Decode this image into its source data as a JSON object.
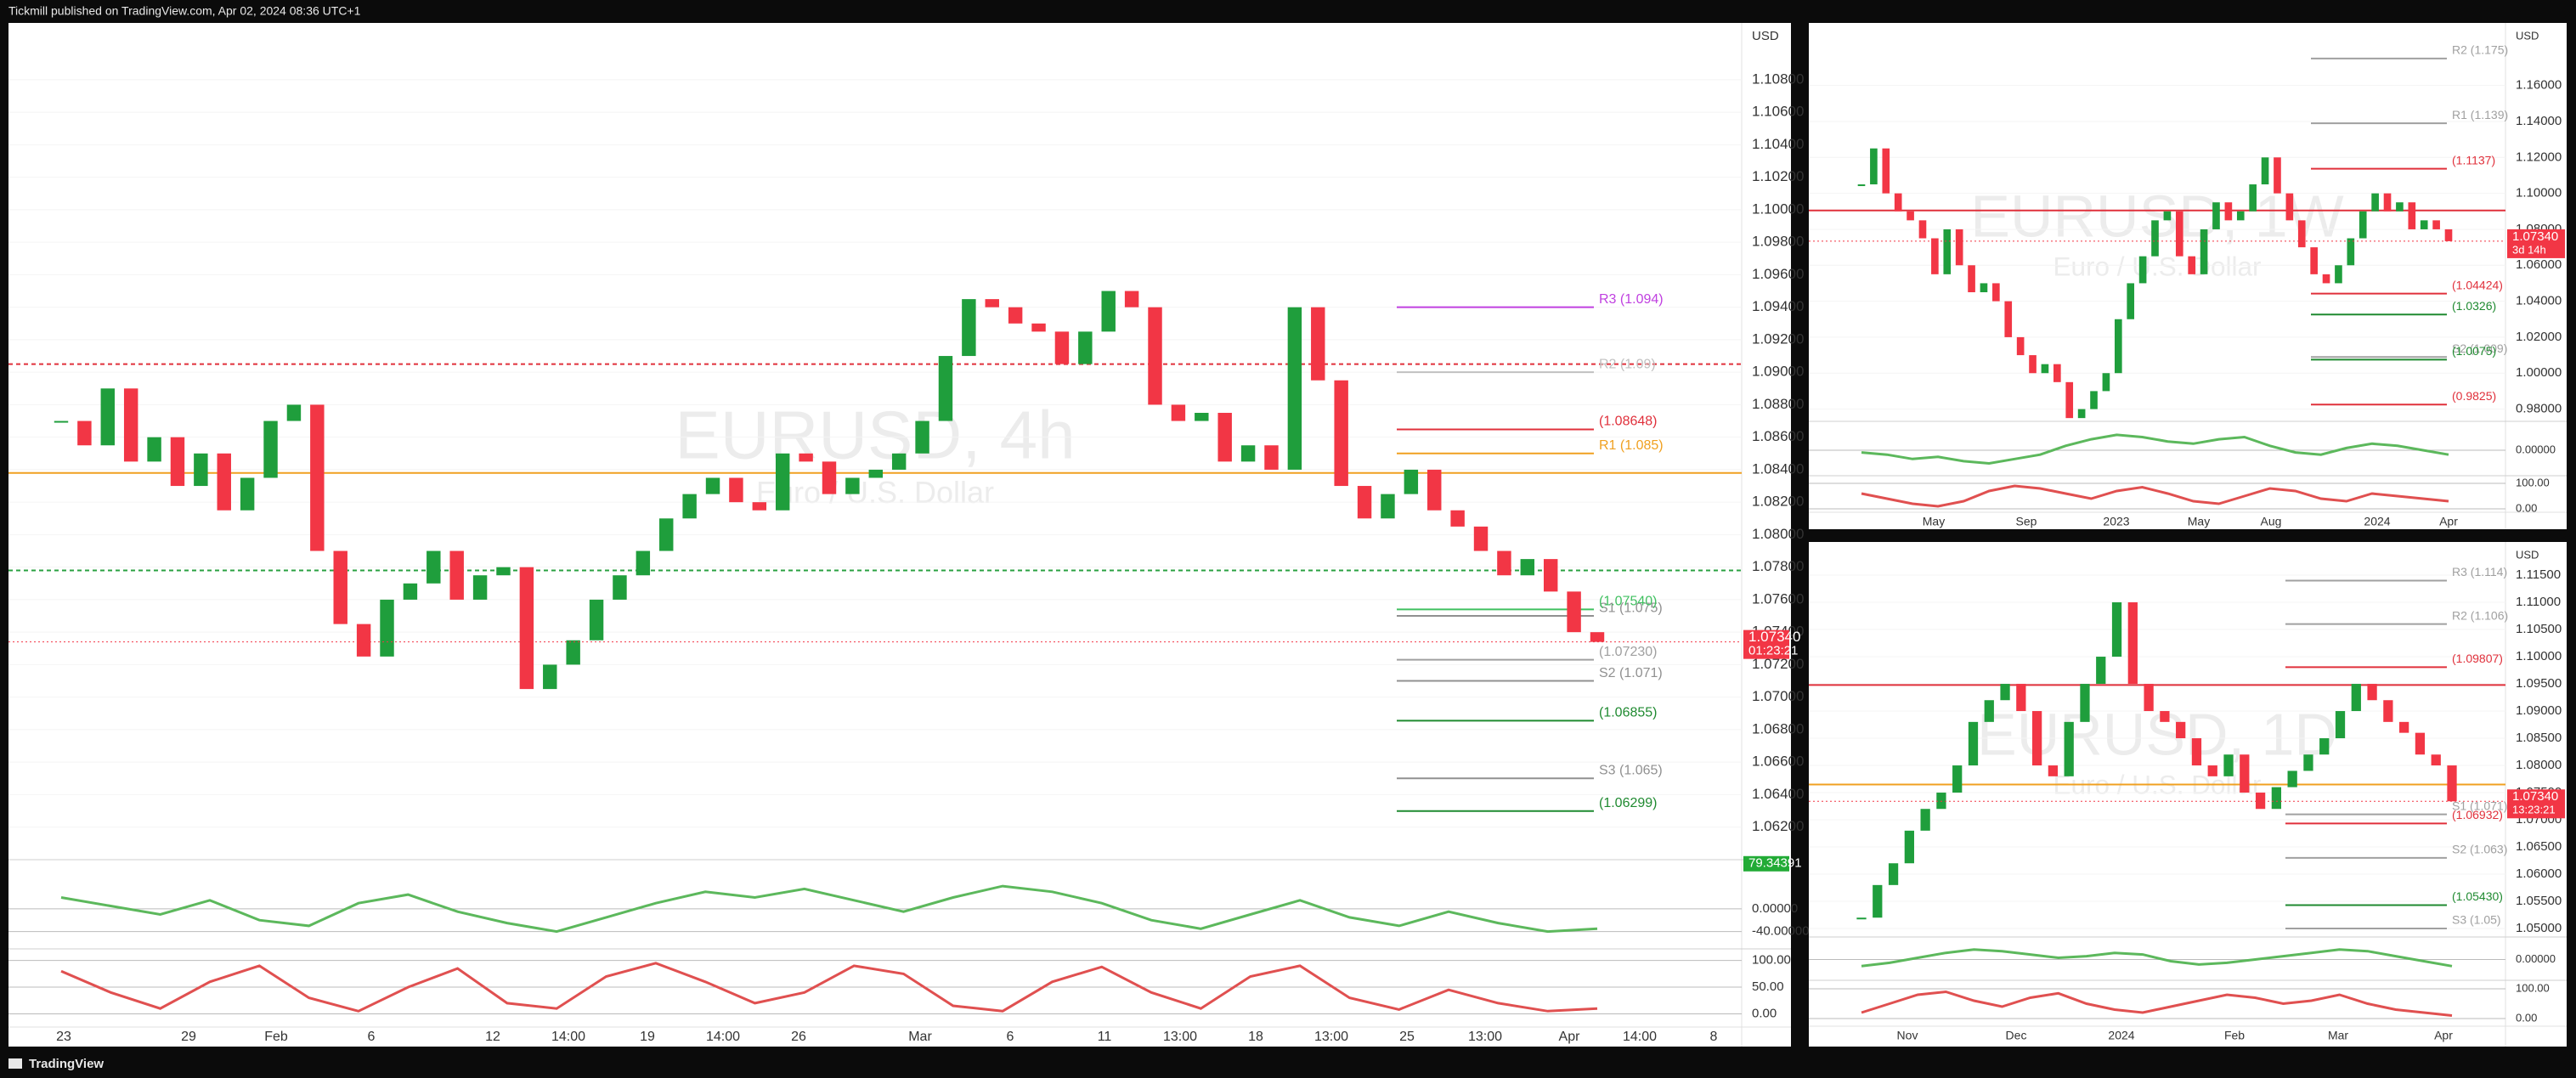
{
  "header": {
    "text": "Tickmill published on TradingView.com, Apr 02, 2024 08:36 UTC+1"
  },
  "footer": {
    "brand": "TradingView"
  },
  "chart_data": [
    {
      "type": "candlestick",
      "symbol": "EURUSD, 4h",
      "description": "Euro / U.S. Dollar",
      "currency": "USD",
      "up_color": "#1f9e3c",
      "down_color": "#f23645",
      "ylim": [
        1.0601,
        1.1115
      ],
      "yticks": [
        {
          "value": 1.108,
          "label": "1.10800"
        },
        {
          "value": 1.106,
          "label": "1.10600"
        },
        {
          "value": 1.104,
          "label": "1.10400"
        },
        {
          "value": 1.102,
          "label": "1.10200"
        },
        {
          "value": 1.1,
          "label": "1.10000"
        },
        {
          "value": 1.098,
          "label": "1.09800"
        },
        {
          "value": 1.096,
          "label": "1.09600"
        },
        {
          "value": 1.094,
          "label": "1.09400"
        },
        {
          "value": 1.092,
          "label": "1.09200"
        },
        {
          "value": 1.09,
          "label": "1.09000"
        },
        {
          "value": 1.088,
          "label": "1.08800"
        },
        {
          "value": 1.086,
          "label": "1.08600"
        },
        {
          "value": 1.084,
          "label": "1.08400"
        },
        {
          "value": 1.082,
          "label": "1.08200"
        },
        {
          "value": 1.08,
          "label": "1.08000"
        },
        {
          "value": 1.078,
          "label": "1.07800"
        },
        {
          "value": 1.076,
          "label": "1.07600"
        },
        {
          "value": 1.074,
          "label": "1.07400"
        },
        {
          "value": 1.072,
          "label": "1.07200"
        },
        {
          "value": 1.07,
          "label": "1.07000"
        },
        {
          "value": 1.068,
          "label": "1.06800"
        },
        {
          "value": 1.066,
          "label": "1.06600"
        },
        {
          "value": 1.064,
          "label": "1.06400"
        },
        {
          "value": 1.062,
          "label": "1.06200"
        }
      ],
      "times": [
        "23",
        "29",
        "Feb",
        "6",
        "12",
        "14:00",
        "19",
        "14:00",
        "26",
        "Mar",
        "6",
        "11",
        "13:00",
        "18",
        "13:00",
        "25",
        "13:00",
        "Apr",
        "14:00",
        "8"
      ],
      "closes": [
        1.087,
        1.0855,
        1.089,
        1.0845,
        1.086,
        1.083,
        1.085,
        1.0815,
        1.0835,
        1.087,
        1.088,
        1.079,
        1.0745,
        1.0725,
        1.076,
        1.077,
        1.079,
        1.076,
        1.0775,
        1.078,
        1.0705,
        1.072,
        1.0735,
        1.076,
        1.0775,
        1.079,
        1.081,
        1.0825,
        1.0835,
        1.082,
        1.0815,
        1.085,
        1.0845,
        1.0825,
        1.0835,
        1.084,
        1.085,
        1.087,
        1.091,
        1.0945,
        1.094,
        1.093,
        1.0925,
        1.0905,
        1.0925,
        1.095,
        1.094,
        1.088,
        1.087,
        1.0875,
        1.0845,
        1.0855,
        1.084,
        1.094,
        1.0895,
        1.083,
        1.081,
        1.0825,
        1.084,
        1.0815,
        1.0805,
        1.079,
        1.0775,
        1.0785,
        1.0765,
        1.074,
        1.0734
      ],
      "lines": [
        {
          "value": 1.0905,
          "color": "#e0303b",
          "dash": true
        },
        {
          "value": 1.0838,
          "color": "#f0a020",
          "dash": false
        },
        {
          "value": 1.0778,
          "color": "#2aa040",
          "dash": true
        }
      ],
      "levels": [
        {
          "label": "R3 (1.094)",
          "value": 1.094,
          "color": "#c040e0"
        },
        {
          "label": "R2 (1.09)",
          "value": 1.09,
          "color": "#c0c0c0"
        },
        {
          "label": "(1.08648)",
          "value": 1.08648,
          "color": "#e0303b"
        },
        {
          "label": "R1 (1.085)",
          "value": 1.085,
          "color": "#f0a020"
        },
        {
          "label": "S1 (1.075)",
          "value": 1.075,
          "color": "#909090"
        },
        {
          "label": "(1.07540)",
          "value": 1.0754,
          "color": "#40c060"
        },
        {
          "label": "(1.07230)",
          "value": 1.0723,
          "color": "#a0a0a0"
        },
        {
          "label": "S2 (1.071)",
          "value": 1.071,
          "color": "#909090"
        },
        {
          "label": "(1.06855)",
          "value": 1.06855,
          "color": "#1f8a30"
        },
        {
          "label": "S3 (1.065)",
          "value": 1.065,
          "color": "#909090"
        },
        {
          "label": "(1.06299)",
          "value": 1.06299,
          "color": "#1f8a30"
        }
      ],
      "last": {
        "value": 1.0734,
        "label": "1.07340",
        "countdown": "01:23:21"
      },
      "oscillators": [
        {
          "ylim": [
            -60,
            82
          ],
          "ticks": [
            {
              "value": 0,
              "label": "0.00000"
            },
            {
              "value": -40,
              "label": "-40.00000"
            }
          ],
          "badge": {
            "value": 79.34391,
            "label": "79.34391"
          },
          "values": [
            20,
            5,
            -10,
            15,
            -20,
            -30,
            10,
            25,
            -5,
            -25,
            -40,
            -15,
            10,
            30,
            20,
            35,
            15,
            -5,
            20,
            40,
            30,
            10,
            -20,
            -35,
            -10,
            15,
            -15,
            -30,
            -5,
            -25,
            -40,
            -35
          ]
        },
        {
          "ylim": [
            -20,
            117
          ],
          "ticks": [
            {
              "value": 100,
              "label": "100.00"
            },
            {
              "value": 50,
              "label": "50.00"
            },
            {
              "value": 0,
              "label": "0.00"
            }
          ],
          "values": [
            80,
            40,
            10,
            60,
            90,
            30,
            5,
            50,
            85,
            20,
            10,
            70,
            95,
            60,
            20,
            40,
            90,
            75,
            15,
            5,
            60,
            88,
            40,
            10,
            70,
            90,
            30,
            8,
            45,
            20,
            5,
            10
          ]
        }
      ]
    },
    {
      "type": "candlestick",
      "symbol": "EURUSD, 1W",
      "description": "Euro / U.S. Dollar",
      "currency": "USD",
      "up_color": "#1f9e3c",
      "down_color": "#f23645",
      "ylim": [
        0.9746,
        1.1948
      ],
      "yticks": [
        {
          "value": 1.16,
          "label": "1.16000"
        },
        {
          "value": 1.14,
          "label": "1.14000"
        },
        {
          "value": 1.12,
          "label": "1.12000"
        },
        {
          "value": 1.1,
          "label": "1.10000"
        },
        {
          "value": 1.08,
          "label": "1.08000"
        },
        {
          "value": 1.06,
          "label": "1.06000"
        },
        {
          "value": 1.04,
          "label": "1.04000"
        },
        {
          "value": 1.02,
          "label": "1.02000"
        },
        {
          "value": 1,
          "label": "1.00000"
        },
        {
          "value": 0.98,
          "label": "0.98000"
        }
      ],
      "times": [
        "May",
        "Sep",
        "2023",
        "May",
        "Aug",
        "2024",
        "Apr"
      ],
      "closes": [
        1.105,
        1.125,
        1.1,
        1.09,
        1.085,
        1.075,
        1.055,
        1.08,
        1.06,
        1.045,
        1.05,
        1.04,
        1.02,
        1.01,
        1.0,
        1.005,
        0.995,
        0.975,
        0.98,
        0.99,
        1.0,
        1.03,
        1.05,
        1.065,
        1.085,
        1.09,
        1.065,
        1.055,
        1.08,
        1.095,
        1.085,
        1.09,
        1.105,
        1.12,
        1.1,
        1.085,
        1.07,
        1.055,
        1.05,
        1.06,
        1.075,
        1.09,
        1.1,
        1.09,
        1.095,
        1.08,
        1.085,
        1.08,
        1.0734
      ],
      "lines": [
        {
          "value": 1.0905,
          "color": "#e0303b",
          "dash": false
        }
      ],
      "levels": [
        {
          "label": "R2 (1.175)",
          "value": 1.175,
          "color": "#a0a0a0"
        },
        {
          "label": "R1 (1.139)",
          "value": 1.139,
          "color": "#a0a0a0"
        },
        {
          "label": "(1.1137)",
          "value": 1.1137,
          "color": "#e0303b"
        },
        {
          "label": "(1.04424)",
          "value": 1.04424,
          "color": "#e0303b"
        },
        {
          "label": "(1.0326)",
          "value": 1.0326,
          "color": "#1f8a30"
        },
        {
          "label": "S2 (1.009)",
          "value": 1.009,
          "color": "#a0a0a0"
        },
        {
          "label": "(1.0075)",
          "value": 1.0075,
          "color": "#1f8a30"
        },
        {
          "label": "(0.9825)",
          "value": 0.9825,
          "color": "#e0303b"
        }
      ],
      "last": {
        "value": 1.0734,
        "label": "1.07340",
        "countdown": "3d 14h"
      },
      "oscillators": [
        {
          "ylim": [
            -60,
            60
          ],
          "ticks": [
            {
              "value": 0,
              "label": "0.00000"
            }
          ],
          "values": [
            -5,
            -10,
            -20,
            -15,
            -25,
            -30,
            -20,
            -10,
            10,
            25,
            35,
            30,
            20,
            15,
            25,
            30,
            10,
            -5,
            -10,
            5,
            15,
            10,
            0,
            -10
          ]
        },
        {
          "ylim": [
            -20,
            120
          ],
          "ticks": [
            {
              "value": 100,
              "label": "100.00"
            },
            {
              "value": 0,
              "label": "0.00"
            }
          ],
          "values": [
            60,
            40,
            20,
            10,
            30,
            70,
            90,
            80,
            60,
            40,
            70,
            85,
            60,
            30,
            20,
            50,
            80,
            70,
            40,
            30,
            60,
            50,
            40,
            30
          ]
        }
      ]
    },
    {
      "type": "candlestick",
      "symbol": "EURUSD, 1D",
      "description": "Euro / U.S. Dollar",
      "currency": "USD",
      "up_color": "#1f9e3c",
      "down_color": "#f23645",
      "ylim": [
        1.0486,
        1.1211
      ],
      "yticks": [
        {
          "value": 1.115,
          "label": "1.11500"
        },
        {
          "value": 1.11,
          "label": "1.11000"
        },
        {
          "value": 1.105,
          "label": "1.10500"
        },
        {
          "value": 1.1,
          "label": "1.10000"
        },
        {
          "value": 1.095,
          "label": "1.09500"
        },
        {
          "value": 1.09,
          "label": "1.09000"
        },
        {
          "value": 1.085,
          "label": "1.08500"
        },
        {
          "value": 1.08,
          "label": "1.08000"
        },
        {
          "value": 1.075,
          "label": "1.07500"
        },
        {
          "value": 1.07,
          "label": "1.07000"
        },
        {
          "value": 1.065,
          "label": "1.06500"
        },
        {
          "value": 1.06,
          "label": "1.06000"
        },
        {
          "value": 1.055,
          "label": "1.05500"
        },
        {
          "value": 1.05,
          "label": "1.05000"
        }
      ],
      "times": [
        "Nov",
        "Dec",
        "2024",
        "Feb",
        "Mar",
        "Apr"
      ],
      "closes": [
        1.052,
        1.058,
        1.062,
        1.068,
        1.072,
        1.075,
        1.08,
        1.088,
        1.092,
        1.095,
        1.09,
        1.08,
        1.078,
        1.088,
        1.095,
        1.1,
        1.11,
        1.095,
        1.09,
        1.088,
        1.085,
        1.08,
        1.078,
        1.082,
        1.075,
        1.072,
        1.076,
        1.079,
        1.082,
        1.085,
        1.09,
        1.095,
        1.092,
        1.088,
        1.086,
        1.082,
        1.08,
        1.0734
      ],
      "lines": [
        {
          "value": 1.0948,
          "color": "#e0303b",
          "dash": false
        },
        {
          "value": 1.0765,
          "color": "#f0a020",
          "dash": false
        }
      ],
      "levels": [
        {
          "label": "R3 (1.114)",
          "value": 1.114,
          "color": "#a0a0a0"
        },
        {
          "label": "R2 (1.106)",
          "value": 1.106,
          "color": "#a0a0a0"
        },
        {
          "label": "(1.09807)",
          "value": 1.09807,
          "color": "#e0303b"
        },
        {
          "label": "S1 (1.071)",
          "value": 1.071,
          "color": "#a0a0a0"
        },
        {
          "label": "(1.06932)",
          "value": 1.06932,
          "color": "#e0303b"
        },
        {
          "label": "S2 (1.063)",
          "value": 1.063,
          "color": "#a0a0a0"
        },
        {
          "label": "(1.05430)",
          "value": 1.0543,
          "color": "#1f8a30"
        },
        {
          "label": "S3 (1.05)",
          "value": 1.05,
          "color": "#a0a0a0"
        }
      ],
      "last": {
        "value": 1.0734,
        "label": "1.07340",
        "countdown": "13:23:21"
      },
      "oscillators": [
        {
          "ylim": [
            -60,
            60
          ],
          "ticks": [
            {
              "value": 0,
              "label": "0.00000"
            }
          ],
          "values": [
            -20,
            -10,
            5,
            20,
            30,
            25,
            15,
            5,
            10,
            20,
            15,
            -5,
            -15,
            -10,
            0,
            10,
            20,
            30,
            25,
            10,
            -5,
            -20
          ]
        },
        {
          "ylim": [
            -20,
            120
          ],
          "ticks": [
            {
              "value": 100,
              "label": "100.00"
            },
            {
              "value": 0,
              "label": "0.00"
            }
          ],
          "values": [
            20,
            50,
            80,
            90,
            60,
            40,
            70,
            85,
            50,
            30,
            20,
            40,
            60,
            80,
            70,
            50,
            60,
            80,
            50,
            30,
            20,
            10
          ]
        }
      ]
    }
  ]
}
